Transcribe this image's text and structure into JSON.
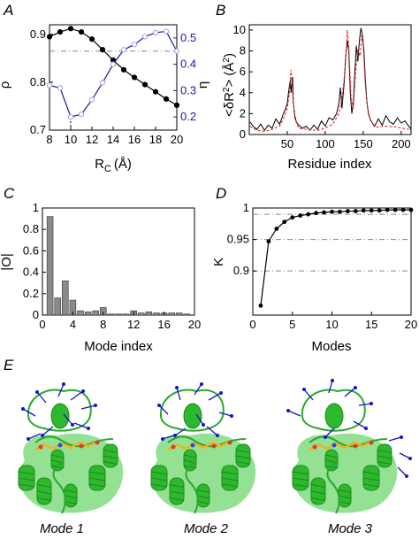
{
  "panel_labels": [
    "A",
    "B",
    "C",
    "D",
    "E"
  ],
  "colors": {
    "black": "#000000",
    "blue": "#1a1a9c",
    "red_dashed": "#e03030",
    "bar_fill": "#8a8a8a",
    "refline": "#888888",
    "protein_green": "#2db82d",
    "arrow_blue": "#1515c8",
    "ligand": "#f2b01e"
  },
  "mode_captions": [
    "Mode 1",
    "Mode 2",
    "Mode 3"
  ],
  "chart_data": [
    {
      "panel": "A",
      "type": "line",
      "xlabel": "R",
      "xlabel_sub": "C",
      "xlabel_unit": "(Å)",
      "ylabel": "ρ",
      "ylabel2": "η",
      "xlim": [
        8,
        20
      ],
      "ylim": [
        0.7,
        0.92
      ],
      "ylim2": [
        0.15,
        0.55
      ],
      "xticks": [
        "8",
        "10",
        "12",
        "14",
        "16",
        "18",
        "20"
      ],
      "yticks": [
        "0.7",
        "0.8",
        "0.9"
      ],
      "yticks2": [
        "0.2",
        "0.3",
        "0.4",
        "0.5"
      ],
      "x": [
        8,
        9,
        10,
        11,
        12,
        13,
        14,
        15,
        16,
        17,
        18,
        19,
        20
      ],
      "series": [
        {
          "values": [
            0.895,
            0.905,
            0.912,
            0.905,
            0.89,
            0.868,
            0.846,
            0.826,
            0.81,
            0.795,
            0.78,
            0.765,
            0.752
          ],
          "axis": "left",
          "color": "#000000",
          "marker": "filled-circle"
        },
        {
          "values": [
            0.32,
            0.31,
            0.2,
            0.21,
            0.265,
            0.33,
            0.4,
            0.455,
            0.475,
            0.505,
            0.52,
            0.525,
            0.45
          ],
          "axis": "right",
          "color": "#1a1a9c",
          "marker": "open-circle"
        }
      ],
      "hline": 0.865,
      "vline": 10
    },
    {
      "panel": "B",
      "type": "line",
      "xlabel": "Residue index",
      "ylabel": "<δR",
      "ylabel_sup": "2",
      "ylabel_end": "> (Å",
      "ylabel_end2": ")",
      "xlim": [
        0,
        213
      ],
      "ylim": [
        0,
        10.5
      ],
      "xticks": [
        50,
        100,
        150,
        200
      ],
      "yticks": [
        0,
        2,
        4,
        6,
        8,
        10
      ],
      "series": [
        {
          "style": "solid",
          "color": "#000000",
          "points": [
            [
              1,
              1.2
            ],
            [
              5,
              0.8
            ],
            [
              10,
              0.5
            ],
            [
              15,
              1.0
            ],
            [
              20,
              0.4
            ],
            [
              25,
              0.9
            ],
            [
              30,
              0.6
            ],
            [
              35,
              1.5
            ],
            [
              40,
              1.0
            ],
            [
              45,
              2.0
            ],
            [
              48,
              2.5
            ],
            [
              50,
              3.0
            ],
            [
              52,
              4.2
            ],
            [
              54,
              5.2
            ],
            [
              55,
              4.0
            ],
            [
              57,
              5.5
            ],
            [
              58,
              3.0
            ],
            [
              60,
              1.8
            ],
            [
              62,
              1.2
            ],
            [
              65,
              0.9
            ],
            [
              70,
              0.6
            ],
            [
              75,
              0.8
            ],
            [
              80,
              0.4
            ],
            [
              85,
              0.9
            ],
            [
              90,
              0.5
            ],
            [
              95,
              1.3
            ],
            [
              100,
              0.8
            ],
            [
              105,
              1.6
            ],
            [
              110,
              1.4
            ],
            [
              115,
              2.0
            ],
            [
              118,
              3.0
            ],
            [
              120,
              4.5
            ],
            [
              122,
              2.5
            ],
            [
              125,
              5.0
            ],
            [
              127,
              7.5
            ],
            [
              129,
              9.0
            ],
            [
              131,
              8.0
            ],
            [
              133,
              4.0
            ],
            [
              135,
              2.0
            ],
            [
              137,
              3.0
            ],
            [
              139,
              6.0
            ],
            [
              141,
              8.5
            ],
            [
              143,
              7.0
            ],
            [
              145,
              9.0
            ],
            [
              147,
              10.2
            ],
            [
              149,
              9.5
            ],
            [
              151,
              8.0
            ],
            [
              153,
              5.0
            ],
            [
              155,
              3.0
            ],
            [
              157,
              2.0
            ],
            [
              160,
              1.3
            ],
            [
              165,
              0.8
            ],
            [
              170,
              1.5
            ],
            [
              175,
              0.9
            ],
            [
              180,
              1.8
            ],
            [
              185,
              1.2
            ],
            [
              190,
              1.0
            ],
            [
              195,
              1.6
            ],
            [
              200,
              1.1
            ],
            [
              205,
              1.3
            ],
            [
              210,
              0.8
            ],
            [
              213,
              0.5
            ]
          ]
        },
        {
          "style": "dashed",
          "color": "#e03030",
          "points": [
            [
              1,
              0.8
            ],
            [
              10,
              0.4
            ],
            [
              20,
              0.3
            ],
            [
              30,
              0.5
            ],
            [
              40,
              0.8
            ],
            [
              45,
              1.5
            ],
            [
              50,
              2.5
            ],
            [
              53,
              4.0
            ],
            [
              55,
              6.2
            ],
            [
              57,
              4.0
            ],
            [
              60,
              1.5
            ],
            [
              65,
              0.6
            ],
            [
              75,
              0.5
            ],
            [
              90,
              0.4
            ],
            [
              100,
              0.6
            ],
            [
              110,
              1.0
            ],
            [
              118,
              2.0
            ],
            [
              122,
              3.5
            ],
            [
              126,
              6.0
            ],
            [
              128,
              8.5
            ],
            [
              129,
              10.0
            ],
            [
              131,
              8.5
            ],
            [
              134,
              3.5
            ],
            [
              137,
              2.5
            ],
            [
              140,
              6.0
            ],
            [
              143,
              8.0
            ],
            [
              146,
              7.5
            ],
            [
              148,
              9.5
            ],
            [
              150,
              8.5
            ],
            [
              153,
              4.5
            ],
            [
              157,
              1.8
            ],
            [
              165,
              0.7
            ],
            [
              180,
              0.8
            ],
            [
              195,
              0.7
            ],
            [
              210,
              0.5
            ]
          ]
        }
      ]
    },
    {
      "panel": "C",
      "type": "bar",
      "xlabel": "Mode index",
      "ylabel": "|O|",
      "xlim": [
        0,
        20
      ],
      "ylim": [
        0,
        1
      ],
      "xticks": [
        0,
        4,
        8,
        12,
        16,
        20
      ],
      "yticks": [
        "0",
        "0.2",
        "0.4",
        "0.6",
        "0.8",
        "1"
      ],
      "categories": [
        1,
        2,
        3,
        4,
        5,
        6,
        7,
        8,
        9,
        10,
        11,
        12,
        13,
        14,
        15,
        16,
        17,
        18,
        19
      ],
      "values": [
        0.92,
        0.16,
        0.32,
        0.14,
        0.04,
        0.03,
        0.04,
        0.07,
        0.01,
        0.01,
        0.01,
        0.04,
        0.02,
        0.03,
        0.02,
        0.02,
        0.02,
        0.02,
        0.01
      ]
    },
    {
      "panel": "D",
      "type": "line",
      "xlabel": "Modes",
      "ylabel": "K",
      "xlim": [
        0,
        20
      ],
      "ylim": [
        0.83,
        1.0
      ],
      "xticks": [
        "0",
        "5",
        "10",
        "15",
        "20"
      ],
      "yticks": [
        "0.9",
        "0.95",
        "1"
      ],
      "hlines": [
        0.99,
        0.95,
        0.9
      ],
      "x": [
        1,
        2,
        3,
        4,
        5,
        6,
        7,
        8,
        9,
        10,
        11,
        12,
        13,
        14,
        15,
        16,
        17,
        18,
        19,
        20
      ],
      "series": [
        {
          "values": [
            0.845,
            0.947,
            0.967,
            0.978,
            0.985,
            0.988,
            0.99,
            0.992,
            0.993,
            0.994,
            0.994,
            0.995,
            0.995,
            0.996,
            0.996,
            0.996,
            0.997,
            0.997,
            0.997,
            0.997
          ],
          "color": "#000000",
          "marker": "filled-circle"
        }
      ]
    }
  ]
}
